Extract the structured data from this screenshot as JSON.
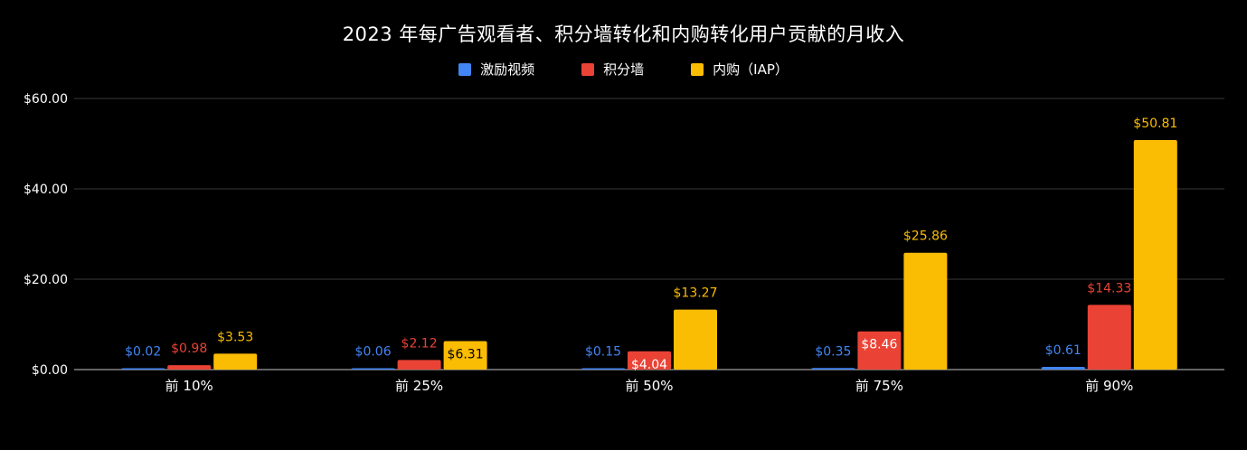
{
  "chart_data": {
    "type": "bar",
    "title": "2023 年每广告观看者、积分墙转化和内购转化用户贡献的月收入",
    "categories": [
      "前 10%",
      "前 25%",
      "前 50%",
      "前 75%",
      "前 90%"
    ],
    "series": [
      {
        "name": "激励视频",
        "color": "#4285F4",
        "values": [
          0.02,
          0.06,
          0.15,
          0.35,
          0.61
        ],
        "labels": [
          "$0.02",
          "$0.06",
          "$0.15",
          "$0.35",
          "$0.61"
        ]
      },
      {
        "name": "积分墙",
        "color": "#EA4335",
        "values": [
          0.98,
          2.12,
          4.04,
          8.46,
          14.33
        ],
        "labels": [
          "$0.98",
          "$2.12",
          "$4.04",
          "$8.46",
          "$14.33"
        ],
        "label_inside": [
          false,
          false,
          true,
          true,
          false
        ]
      },
      {
        "name": "内购（IAP）",
        "color": "#FBBC04",
        "values": [
          3.53,
          6.31,
          13.27,
          25.86,
          50.81
        ],
        "labels": [
          "$3.53",
          "$6.31",
          "$13.27",
          "$25.86",
          "$50.81"
        ],
        "label_inside": [
          false,
          true,
          false,
          false,
          false
        ]
      }
    ],
    "ylim": [
      0,
      60
    ],
    "yticks": [
      0,
      20,
      40,
      60
    ],
    "ytick_labels": [
      "$0.00",
      "$20.00",
      "$40.00",
      "$60.00"
    ],
    "xlabel": "",
    "ylabel": "",
    "grid": true,
    "legend_position": "top-center",
    "background": "#000000"
  }
}
